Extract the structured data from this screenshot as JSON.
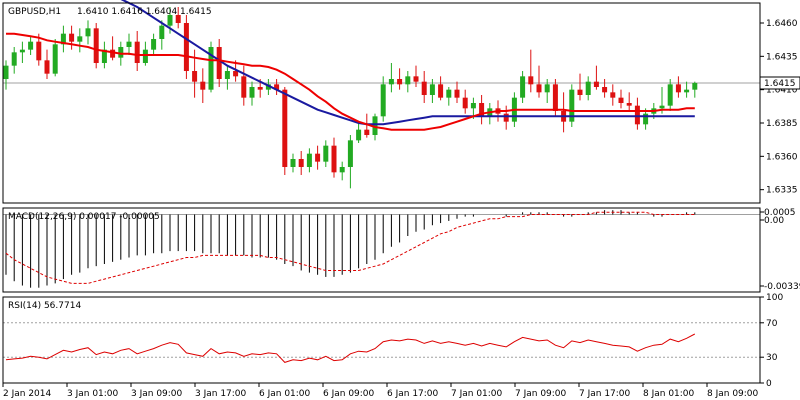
{
  "header": {
    "symbol": "GBPUSD,H1",
    "ohlc": "1.6410 1.6416 1.6404 1.6415"
  },
  "colors": {
    "bull": "#22aa22",
    "bear": "#dd1111",
    "ma_fast": "#ee0000",
    "ma_slow": "#1a1aa0",
    "macd_hist": "#000000",
    "macd_signal": "#dd0000",
    "rsi": "#dd0000",
    "current_price_line": "#a0a0a0",
    "level_line": "#a0a0a0"
  },
  "chart_data": [
    {
      "type": "candlestick",
      "panel": "price",
      "ylim": [
        1.6325,
        1.6475
      ],
      "yticks": [
        1.6335,
        1.636,
        1.6385,
        1.641,
        1.6435,
        1.646
      ],
      "ytick_labels": [
        "1.6335",
        "1.6360",
        "1.6385",
        "1.6410",
        "1.6435",
        "1.6460"
      ],
      "current_price": 1.6415,
      "current_price_label": "1.6415",
      "candles": [
        [
          1.6418,
          1.6432,
          1.641,
          1.6428
        ],
        [
          1.6428,
          1.6442,
          1.6422,
          1.6438
        ],
        [
          1.6438,
          1.6446,
          1.643,
          1.644
        ],
        [
          1.644,
          1.645,
          1.6436,
          1.6446
        ],
        [
          1.6446,
          1.6452,
          1.6428,
          1.6432
        ],
        [
          1.6432,
          1.644,
          1.6418,
          1.6422
        ],
        [
          1.6422,
          1.6448,
          1.642,
          1.6444
        ],
        [
          1.6444,
          1.6458,
          1.6438,
          1.6452
        ],
        [
          1.6452,
          1.6458,
          1.644,
          1.6446
        ],
        [
          1.6446,
          1.6456,
          1.6438,
          1.645
        ],
        [
          1.645,
          1.6462,
          1.6444,
          1.6456
        ],
        [
          1.6456,
          1.646,
          1.6426,
          1.643
        ],
        [
          1.643,
          1.6446,
          1.6426,
          1.644
        ],
        [
          1.644,
          1.645,
          1.6432,
          1.6434
        ],
        [
          1.6434,
          1.6446,
          1.6428,
          1.6442
        ],
        [
          1.6442,
          1.6452,
          1.6436,
          1.6446
        ],
        [
          1.6446,
          1.6454,
          1.6424,
          1.643
        ],
        [
          1.643,
          1.6446,
          1.6428,
          1.644
        ],
        [
          1.644,
          1.6452,
          1.6436,
          1.6448
        ],
        [
          1.6448,
          1.6462,
          1.644,
          1.6458
        ],
        [
          1.6458,
          1.6472,
          1.6452,
          1.6466
        ],
        [
          1.6466,
          1.6472,
          1.6456,
          1.646
        ],
        [
          1.646,
          1.6466,
          1.6418,
          1.6424
        ],
        [
          1.6424,
          1.644,
          1.6404,
          1.6416
        ],
        [
          1.6416,
          1.6426,
          1.64,
          1.641
        ],
        [
          1.641,
          1.6446,
          1.6408,
          1.6442
        ],
        [
          1.6442,
          1.6448,
          1.6412,
          1.6418
        ],
        [
          1.6418,
          1.6428,
          1.641,
          1.6424
        ],
        [
          1.6424,
          1.6432,
          1.6416,
          1.642
        ],
        [
          1.642,
          1.6428,
          1.6398,
          1.6404
        ],
        [
          1.6404,
          1.6416,
          1.6398,
          1.6412
        ],
        [
          1.6412,
          1.6418,
          1.6404,
          1.641
        ],
        [
          1.641,
          1.6418,
          1.6406,
          1.6414
        ],
        [
          1.6414,
          1.6418,
          1.6406,
          1.641
        ],
        [
          1.641,
          1.6412,
          1.6346,
          1.6352
        ],
        [
          1.6352,
          1.6362,
          1.6348,
          1.6358
        ],
        [
          1.6358,
          1.6364,
          1.6346,
          1.6352
        ],
        [
          1.6352,
          1.6366,
          1.6348,
          1.6362
        ],
        [
          1.6362,
          1.6368,
          1.635,
          1.6356
        ],
        [
          1.6356,
          1.6372,
          1.6352,
          1.6368
        ],
        [
          1.6368,
          1.6374,
          1.6344,
          1.6348
        ],
        [
          1.6348,
          1.6356,
          1.6342,
          1.6352
        ],
        [
          1.6352,
          1.6376,
          1.6336,
          1.6372
        ],
        [
          1.6372,
          1.6386,
          1.637,
          1.638
        ],
        [
          1.638,
          1.6392,
          1.6374,
          1.6376
        ],
        [
          1.6376,
          1.6392,
          1.6372,
          1.639
        ],
        [
          1.639,
          1.642,
          1.6386,
          1.6414
        ],
        [
          1.6414,
          1.643,
          1.6408,
          1.6418
        ],
        [
          1.6418,
          1.6426,
          1.641,
          1.6414
        ],
        [
          1.6414,
          1.6424,
          1.6408,
          1.642
        ],
        [
          1.642,
          1.6428,
          1.6412,
          1.6416
        ],
        [
          1.6416,
          1.6424,
          1.64,
          1.6406
        ],
        [
          1.6406,
          1.6418,
          1.64,
          1.6414
        ],
        [
          1.6414,
          1.642,
          1.6402,
          1.6404
        ],
        [
          1.6404,
          1.6412,
          1.6398,
          1.641
        ],
        [
          1.641,
          1.6416,
          1.64,
          1.6404
        ],
        [
          1.6404,
          1.641,
          1.6392,
          1.6396
        ],
        [
          1.6396,
          1.6404,
          1.6388,
          1.64
        ],
        [
          1.64,
          1.6406,
          1.6384,
          1.639
        ],
        [
          1.639,
          1.64,
          1.6384,
          1.6396
        ],
        [
          1.6396,
          1.6402,
          1.6386,
          1.6392
        ],
        [
          1.6392,
          1.6398,
          1.638,
          1.6386
        ],
        [
          1.6386,
          1.6408,
          1.6382,
          1.6404
        ],
        [
          1.6404,
          1.6424,
          1.64,
          1.642
        ],
        [
          1.642,
          1.644,
          1.6408,
          1.6414
        ],
        [
          1.6414,
          1.6428,
          1.6404,
          1.6408
        ],
        [
          1.6408,
          1.6418,
          1.64,
          1.6414
        ],
        [
          1.6414,
          1.6418,
          1.639,
          1.6394
        ],
        [
          1.6394,
          1.6408,
          1.6378,
          1.6386
        ],
        [
          1.6386,
          1.6414,
          1.6382,
          1.641
        ],
        [
          1.641,
          1.6422,
          1.6402,
          1.6406
        ],
        [
          1.6406,
          1.642,
          1.6402,
          1.6416
        ],
        [
          1.6416,
          1.6428,
          1.641,
          1.6412
        ],
        [
          1.6412,
          1.6418,
          1.6404,
          1.6408
        ],
        [
          1.6408,
          1.6414,
          1.6398,
          1.6404
        ],
        [
          1.6404,
          1.641,
          1.6396,
          1.64
        ],
        [
          1.64,
          1.6408,
          1.6394,
          1.6398
        ],
        [
          1.6398,
          1.6404,
          1.638,
          1.6384
        ],
        [
          1.6384,
          1.6396,
          1.638,
          1.6392
        ],
        [
          1.6392,
          1.64,
          1.6388,
          1.6396
        ],
        [
          1.6396,
          1.6412,
          1.6392,
          1.6398
        ],
        [
          1.6398,
          1.6418,
          1.6394,
          1.6414
        ],
        [
          1.6414,
          1.642,
          1.6404,
          1.6408
        ],
        [
          1.6408,
          1.6416,
          1.6404,
          1.641
        ],
        [
          1.641,
          1.6416,
          1.6404,
          1.6415
        ]
      ],
      "ma_fast": [
        1.6452,
        1.6452,
        1.6451,
        1.645,
        1.6449,
        1.6447,
        1.6446,
        1.6445,
        1.6444,
        1.6443,
        1.6442,
        1.644,
        1.6439,
        1.6438,
        1.6437,
        1.6437,
        1.6436,
        1.6436,
        1.6436,
        1.6436,
        1.6436,
        1.6436,
        1.6435,
        1.6434,
        1.6433,
        1.6432,
        1.6432,
        1.6431,
        1.643,
        1.6429,
        1.6428,
        1.6428,
        1.6427,
        1.6425,
        1.6422,
        1.6418,
        1.6414,
        1.641,
        1.6405,
        1.6401,
        1.6396,
        1.6392,
        1.6389,
        1.6386,
        1.6384,
        1.6382,
        1.6381,
        1.638,
        1.638,
        1.638,
        1.638,
        1.638,
        1.6381,
        1.6382,
        1.6384,
        1.6386,
        1.6388,
        1.639,
        1.6392,
        1.6393,
        1.6394,
        1.6394,
        1.6395,
        1.6395,
        1.6395,
        1.6395,
        1.6395,
        1.6395,
        1.6395,
        1.6394,
        1.6394,
        1.6394,
        1.6394,
        1.6394,
        1.6394,
        1.6394,
        1.6394,
        1.6394,
        1.6394,
        1.6394,
        1.6395,
        1.6395,
        1.6395,
        1.6396,
        1.6396
      ],
      "ma_slow": [
        1.652,
        1.6517,
        1.6514,
        1.6511,
        1.6508,
        1.6505,
        1.6502,
        1.6499,
        1.6496,
        1.6493,
        1.649,
        1.6487,
        1.6484,
        1.6481,
        1.6478,
        1.6475,
        1.6472,
        1.6468,
        1.6464,
        1.646,
        1.6456,
        1.6452,
        1.6448,
        1.6444,
        1.644,
        1.6436,
        1.6432,
        1.6428,
        1.6425,
        1.6422,
        1.6419,
        1.6416,
        1.6413,
        1.641,
        1.6407,
        1.6404,
        1.6401,
        1.6398,
        1.6395,
        1.6393,
        1.6391,
        1.6389,
        1.6387,
        1.6385,
        1.6384,
        1.6384,
        1.6384,
        1.6385,
        1.6386,
        1.6387,
        1.6388,
        1.6389,
        1.639,
        1.639,
        1.639,
        1.639,
        1.639,
        1.639,
        1.639,
        1.639,
        1.639,
        1.639,
        1.639,
        1.639,
        1.639,
        1.639,
        1.639,
        1.639,
        1.639,
        1.639,
        1.639,
        1.639,
        1.639,
        1.639,
        1.639,
        1.639,
        1.639,
        1.639,
        1.639,
        1.639,
        1.639,
        1.639,
        1.639,
        1.639,
        1.639
      ]
    },
    {
      "type": "bar+line",
      "panel": "macd",
      "label": "MACD(12,26,9) 0.00017 -0.00005",
      "ylim": [
        -0.0036,
        0.0003
      ],
      "yticks": [
        0.0005,
        0.0,
        -0.00339
      ],
      "ytick_labels": [
        "0.0005",
        "0.00",
        "-0.00339"
      ],
      "histogram": [
        -0.0028,
        -0.0031,
        -0.0033,
        -0.0034,
        -0.0034,
        -0.0033,
        -0.0032,
        -0.003,
        -0.0028,
        -0.0027,
        -0.0025,
        -0.0024,
        -0.0023,
        -0.0022,
        -0.0021,
        -0.002,
        -0.0019,
        -0.0019,
        -0.0018,
        -0.0018,
        -0.0017,
        -0.0017,
        -0.0017,
        -0.0017,
        -0.0018,
        -0.0018,
        -0.0018,
        -0.0019,
        -0.0019,
        -0.0019,
        -0.002,
        -0.002,
        -0.002,
        -0.0021,
        -0.0023,
        -0.0024,
        -0.0026,
        -0.0027,
        -0.0028,
        -0.0029,
        -0.0029,
        -0.0028,
        -0.0027,
        -0.0025,
        -0.0023,
        -0.0021,
        -0.0018,
        -0.0015,
        -0.0013,
        -0.001,
        -0.0008,
        -0.0007,
        -0.0005,
        -0.0004,
        -0.0003,
        -0.0002,
        -0.0001,
        -0.0001,
        0.0,
        0.0,
        0.0,
        -0.0001,
        0.0,
        0.0001,
        0.0001,
        0.0001,
        0.0001,
        0.0,
        -0.0001,
        -0.0001,
        0.0,
        0.0001,
        0.0001,
        0.0002,
        0.0002,
        0.0002,
        0.0001,
        0.0001,
        0.0,
        -0.0001,
        -0.0001,
        0.0,
        0.0,
        0.0001,
        0.0001
      ],
      "signal": [
        -0.0018,
        -0.0021,
        -0.0023,
        -0.0025,
        -0.0027,
        -0.0029,
        -0.003,
        -0.0031,
        -0.0032,
        -0.0032,
        -0.0032,
        -0.0031,
        -0.003,
        -0.0029,
        -0.0028,
        -0.0027,
        -0.0026,
        -0.0025,
        -0.0024,
        -0.0023,
        -0.0022,
        -0.0021,
        -0.002,
        -0.002,
        -0.0019,
        -0.0019,
        -0.0019,
        -0.0019,
        -0.0019,
        -0.0019,
        -0.0019,
        -0.0019,
        -0.002,
        -0.002,
        -0.0021,
        -0.0022,
        -0.0023,
        -0.0024,
        -0.0025,
        -0.0026,
        -0.0026,
        -0.0026,
        -0.0026,
        -0.0026,
        -0.0025,
        -0.0024,
        -0.0023,
        -0.0021,
        -0.0019,
        -0.0017,
        -0.0015,
        -0.0013,
        -0.0011,
        -0.0009,
        -0.0008,
        -0.0006,
        -0.0005,
        -0.0004,
        -0.0003,
        -0.0002,
        -0.0002,
        -0.0001,
        -0.0001,
        -0.0001,
        0.0,
        0.0,
        0.0,
        0.0,
        0.0,
        0.0,
        0.0,
        0.0,
        0.0001,
        0.0001,
        0.0001,
        0.0001,
        0.0001,
        0.0001,
        0.0001,
        0.0,
        0.0,
        0.0,
        0.0,
        0.0,
        0.0
      ]
    },
    {
      "type": "line",
      "panel": "rsi",
      "label": "RSI(14) 56.7714",
      "ylim": [
        0,
        100
      ],
      "levels": [
        30,
        70
      ],
      "yticks": [
        100,
        70,
        30,
        0
      ],
      "ytick_labels": [
        "100",
        "70",
        "30",
        "0"
      ],
      "values": [
        27,
        28,
        29,
        31,
        30,
        28,
        33,
        38,
        36,
        39,
        41,
        33,
        36,
        34,
        38,
        40,
        34,
        37,
        40,
        44,
        47,
        45,
        35,
        33,
        31,
        40,
        34,
        36,
        35,
        31,
        34,
        33,
        35,
        34,
        24,
        27,
        26,
        29,
        27,
        31,
        26,
        27,
        34,
        37,
        36,
        40,
        48,
        50,
        49,
        51,
        50,
        46,
        49,
        46,
        48,
        46,
        44,
        46,
        43,
        46,
        44,
        42,
        48,
        53,
        51,
        49,
        50,
        44,
        41,
        49,
        47,
        50,
        48,
        46,
        44,
        43,
        42,
        37,
        41,
        44,
        45,
        51,
        48,
        52,
        57
      ]
    },
    {
      "type": "axis",
      "panel": "time",
      "x_labels": [
        "2 Jan 2014",
        "3 Jan 01:00",
        "3 Jan 09:00",
        "3 Jan 17:00",
        "6 Jan 01:00",
        "6 Jan 09:00",
        "6 Jan 17:00",
        "7 Jan 01:00",
        "7 Jan 09:00",
        "7 Jan 17:00",
        "8 Jan 01:00",
        "8 Jan 09:00"
      ]
    }
  ]
}
